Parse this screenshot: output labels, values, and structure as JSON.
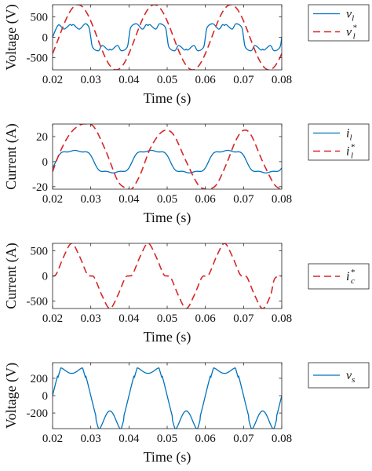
{
  "chart_data": [
    {
      "type": "line",
      "xlabel": "Time (s)",
      "ylabel": "Voltage (V)",
      "xlim": [
        0.02,
        0.08
      ],
      "ylim": [
        -800,
        800
      ],
      "xticks": [
        0.02,
        0.03,
        0.04,
        0.05,
        0.06,
        0.07,
        0.08
      ],
      "yticks": [
        500,
        0,
        -500
      ],
      "ytick_labels": [
        "500",
        "0",
        "-500"
      ],
      "legend_position": "right",
      "series": [
        {
          "name": "v_l",
          "legend_main": "v",
          "legend_sub": "l",
          "legend_sup": "",
          "color": "#0072BD",
          "dash": "solid",
          "x": [
            0.02,
            0.0215,
            0.023,
            0.0245,
            0.025,
            0.0255,
            0.027,
            0.0285,
            0.0295,
            0.03,
            0.0305,
            0.032,
            0.033,
            0.0345,
            0.035,
            0.0355,
            0.037,
            0.038,
            0.0395,
            0.04,
            0.0405,
            0.042,
            0.0435,
            0.0445,
            0.045,
            0.0455,
            0.047,
            0.048,
            0.0495,
            0.05,
            0.0505,
            0.052,
            0.053,
            0.0545,
            0.055,
            0.0555,
            0.057,
            0.058,
            0.0595,
            0.06,
            0.0605,
            0.062,
            0.0635,
            0.0645,
            0.065,
            0.0655,
            0.067,
            0.068,
            0.0695,
            0.07,
            0.0705,
            0.072,
            0.073,
            0.0745,
            0.075,
            0.0755,
            0.077,
            0.078,
            0.0795,
            0.08
          ],
          "y": [
            0,
            300,
            200,
            310,
            290,
            310,
            200,
            330,
            250,
            0,
            -250,
            -330,
            -200,
            -310,
            -290,
            -310,
            -200,
            -330,
            -250,
            0,
            250,
            330,
            200,
            310,
            290,
            310,
            200,
            330,
            250,
            0,
            -250,
            -330,
            -200,
            -310,
            -290,
            -310,
            -200,
            -330,
            -250,
            0,
            250,
            330,
            200,
            310,
            290,
            310,
            200,
            330,
            250,
            0,
            -250,
            -330,
            -200,
            -310,
            -290,
            -310,
            -200,
            -330,
            -250,
            0
          ]
        },
        {
          "name": "v_l^*",
          "legend_main": "v",
          "legend_sub": "l",
          "legend_sup": "*",
          "color": "#D62728",
          "dash": "dashed",
          "fn": {
            "amp": 800,
            "freq": 50,
            "phase_deg": -30
          }
        }
      ]
    },
    {
      "type": "line",
      "xlabel": "Time (s)",
      "ylabel": "Current (A)",
      "xlim": [
        0.02,
        0.08
      ],
      "ylim": [
        -22,
        30
      ],
      "xticks": [
        0.02,
        0.03,
        0.04,
        0.05,
        0.06,
        0.07,
        0.08
      ],
      "yticks": [
        20,
        0,
        -20
      ],
      "ytick_labels": [
        "20",
        "0",
        "-20"
      ],
      "legend_position": "right",
      "series": [
        {
          "name": "i_l",
          "legend_main": "i",
          "legend_sub": "l",
          "legend_sup": "",
          "color": "#0072BD",
          "dash": "solid",
          "fn": {
            "amp": 10,
            "freq": 50,
            "phase_deg": -15,
            "h3_amp": 2.0,
            "h3_phase_deg": 0,
            "h5_amp": 1.0,
            "h5_phase_deg": 0
          }
        },
        {
          "name": "i_l^*",
          "legend_main": "i",
          "legend_sub": "l",
          "legend_sup": "*",
          "color": "#D62728",
          "dash": "dashed",
          "x": [
            0.02,
            0.022,
            0.0245,
            0.027,
            0.029,
            0.031,
            0.034,
            0.037,
            0.039,
            0.04,
            0.041,
            0.043,
            0.0455,
            0.048,
            0.05,
            0.052,
            0.055,
            0.058,
            0.06,
            0.061,
            0.063,
            0.0655,
            0.068,
            0.07,
            0.072,
            0.075,
            0.078,
            0.08
          ],
          "y": [
            -8,
            8,
            22,
            29,
            30,
            27,
            8,
            -15,
            -21,
            -22,
            -21,
            -10,
            10,
            22,
            25,
            20,
            0,
            -18,
            -22,
            -22,
            -18,
            -2,
            17,
            25,
            21,
            0,
            -18,
            -22
          ]
        }
      ]
    },
    {
      "type": "line",
      "xlabel": "Time (s)",
      "ylabel": "Current (A)",
      "xlim": [
        0.02,
        0.08
      ],
      "ylim": [
        -650,
        650
      ],
      "xticks": [
        0.02,
        0.03,
        0.04,
        0.05,
        0.06,
        0.07,
        0.08
      ],
      "yticks": [
        500,
        0,
        -500
      ],
      "ytick_labels": [
        "500",
        "0",
        "-500"
      ],
      "legend_position": "right",
      "series": [
        {
          "name": "i_c^*",
          "legend_main": "i",
          "legend_sub": "c",
          "legend_sup": "*",
          "color": "#D62728",
          "dash": "dashed",
          "x": [
            0.02,
            0.021,
            0.023,
            0.025,
            0.027,
            0.029,
            0.03,
            0.031,
            0.033,
            0.035,
            0.037,
            0.039,
            0.04,
            0.041,
            0.043,
            0.045,
            0.047,
            0.049,
            0.05,
            0.051,
            0.053,
            0.055,
            0.057,
            0.059,
            0.06,
            0.061,
            0.063,
            0.065,
            0.067,
            0.069,
            0.07,
            0.071,
            0.073,
            0.075,
            0.077,
            0.078,
            0.079,
            0.08
          ],
          "y": [
            0,
            40,
            400,
            650,
            400,
            40,
            0,
            -40,
            -400,
            -650,
            -400,
            -40,
            0,
            40,
            400,
            650,
            400,
            40,
            0,
            -40,
            -400,
            -650,
            -400,
            -40,
            0,
            40,
            400,
            650,
            400,
            40,
            0,
            -40,
            -400,
            -650,
            -400,
            -80,
            -10,
            0
          ]
        }
      ]
    },
    {
      "type": "line",
      "xlabel": "Time (s)",
      "ylabel": "Voltage (V)",
      "xlim": [
        0.02,
        0.08
      ],
      "ylim": [
        -380,
        380
      ],
      "xticks": [
        0.02,
        0.03,
        0.04,
        0.05,
        0.06,
        0.07,
        0.08
      ],
      "yticks": [
        200,
        0,
        -200
      ],
      "ytick_labels": [
        "200",
        "0",
        "-200"
      ],
      "legend_position": "right",
      "series": [
        {
          "name": "v_s",
          "legend_main": "v",
          "legend_sub": "s",
          "legend_sup": "",
          "color": "#0072BD",
          "dash": "solid",
          "fn": {
            "amp": 600,
            "freq": 50,
            "phase_deg": 0,
            "h3_amp": 0,
            "h3_phase_deg": 0,
            "h5_amp": 0,
            "h5_phase_deg": 0,
            "clip": 380,
            "notch": true
          }
        }
      ]
    }
  ]
}
